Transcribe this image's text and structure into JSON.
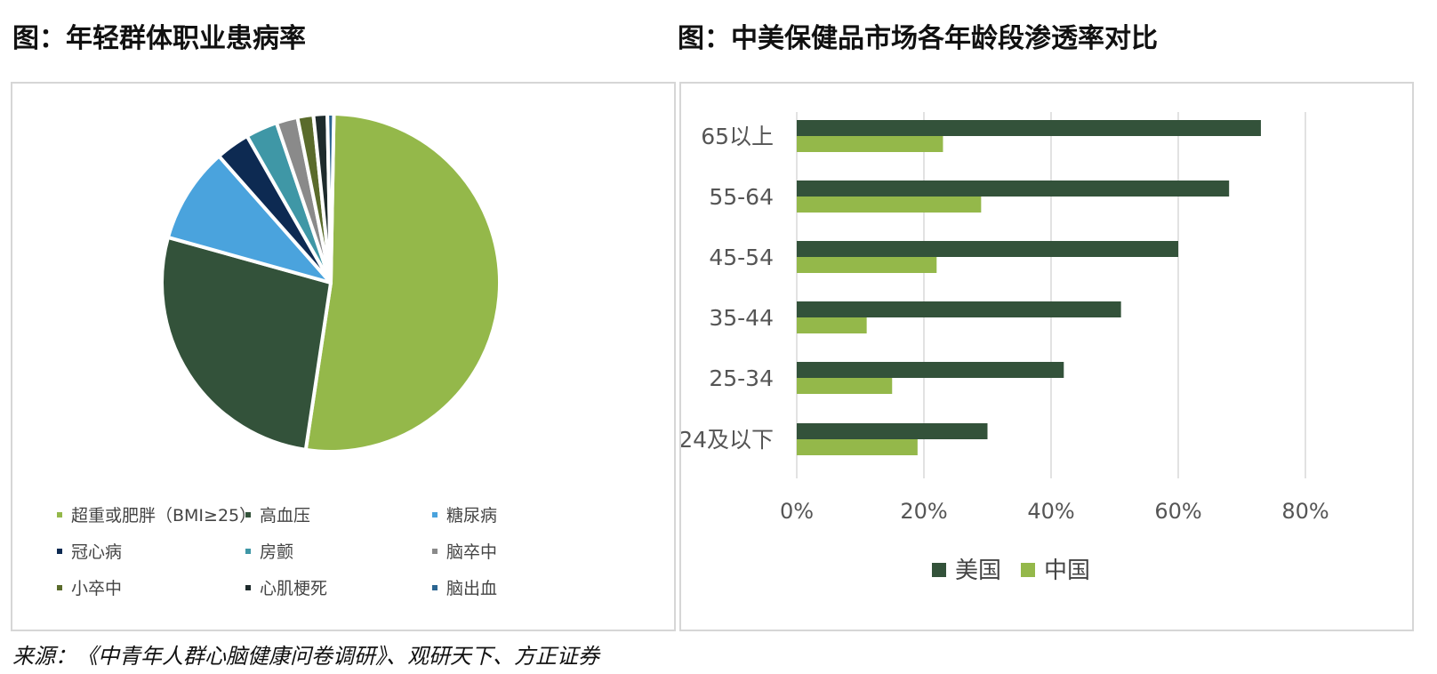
{
  "titles": {
    "left": "图：年轻群体职业患病率",
    "right": "图：中美保健品市场各年龄段渗透率对比"
  },
  "source": "来源：《中青年人群心脑健康问卷调研》、观研天下、方正证券",
  "chart_data": [
    {
      "type": "pie",
      "title": "图：年轻群体职业患病率",
      "slices": [
        {
          "label": "超重或肥胖（BMI≥25）",
          "value": 51.2,
          "color": "#94b84a"
        },
        {
          "label": "高血压",
          "value": 26.5,
          "color": "#33523a"
        },
        {
          "label": "糖尿病",
          "value": 9.0,
          "color": "#4aa3dd"
        },
        {
          "label": "冠心病",
          "value": 3.2,
          "color": "#0d2a52"
        },
        {
          "label": "房颤",
          "value": 3.0,
          "color": "#3f97a6"
        },
        {
          "label": "脑卒中",
          "value": 2.0,
          "color": "#8a8a8a"
        },
        {
          "label": "小卒中",
          "value": 1.5,
          "color": "#5a6b2b"
        },
        {
          "label": "心肌梗死",
          "value": 1.3,
          "color": "#1e2b2c"
        },
        {
          "label": "脑出血",
          "value": 0.6,
          "color": "#2b6591"
        }
      ]
    },
    {
      "type": "bar",
      "orientation": "horizontal",
      "title": "图：中美保健品市场各年龄段渗透率对比",
      "categories": [
        "65以上",
        "55-64",
        "45-54",
        "35-44",
        "25-34",
        "24及以下"
      ],
      "series": [
        {
          "name": "美国",
          "color": "#33523a",
          "values": [
            73,
            68,
            60,
            51,
            42,
            30
          ]
        },
        {
          "name": "中国",
          "color": "#94b84a",
          "values": [
            23,
            29,
            22,
            11,
            15,
            19
          ]
        }
      ],
      "xlim": [
        0,
        80
      ],
      "xticks": [
        0,
        20,
        40,
        60,
        80
      ],
      "xtick_labels": [
        "0%",
        "20%",
        "40%",
        "60%",
        "80%"
      ],
      "grid": true,
      "legend": "bottom"
    }
  ]
}
